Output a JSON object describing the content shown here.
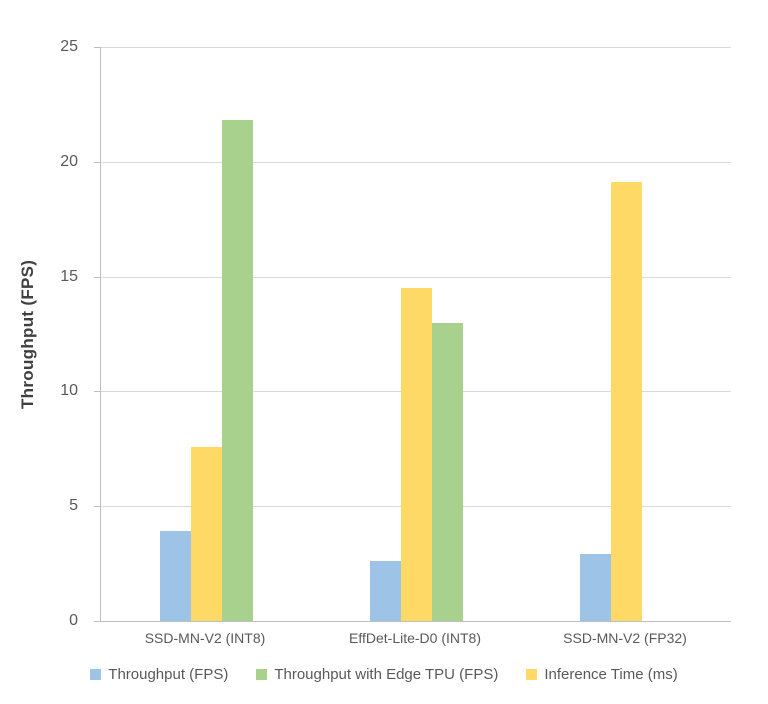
{
  "chart_data": {
    "type": "bar",
    "title": "",
    "categories": [
      "SSD-MN-V2 (INT8)",
      "EffDet-Lite-D0 (INT8)",
      "SSD-MN-V2 (FP32)"
    ],
    "series": [
      {
        "name": "Throughput (FPS)",
        "color": "#9DC3E6",
        "values": [
          3.9,
          2.6,
          2.9
        ]
      },
      {
        "name": "Inference Time (ms)",
        "color": "#FFD966",
        "values": [
          7.6,
          14.5,
          19.1
        ]
      },
      {
        "name": "Throughput with Edge TPU (FPS)",
        "color": "#A9D18E",
        "values": [
          21.8,
          13.0,
          null
        ]
      }
    ],
    "legend": [
      {
        "label": "Throughput (FPS)",
        "color": "#9DC3E6"
      },
      {
        "label": "Throughput with Edge TPU (FPS)",
        "color": "#A9D18E"
      },
      {
        "label": "Inference Time (ms)",
        "color": "#FFD966"
      }
    ],
    "xlabel": "",
    "ylabel": "Throughput (FPS)",
    "ylim": [
      0,
      25
    ],
    "yticks": [
      0,
      5,
      10,
      15,
      20,
      25
    ],
    "grid": true,
    "legend_position": "bottom"
  }
}
